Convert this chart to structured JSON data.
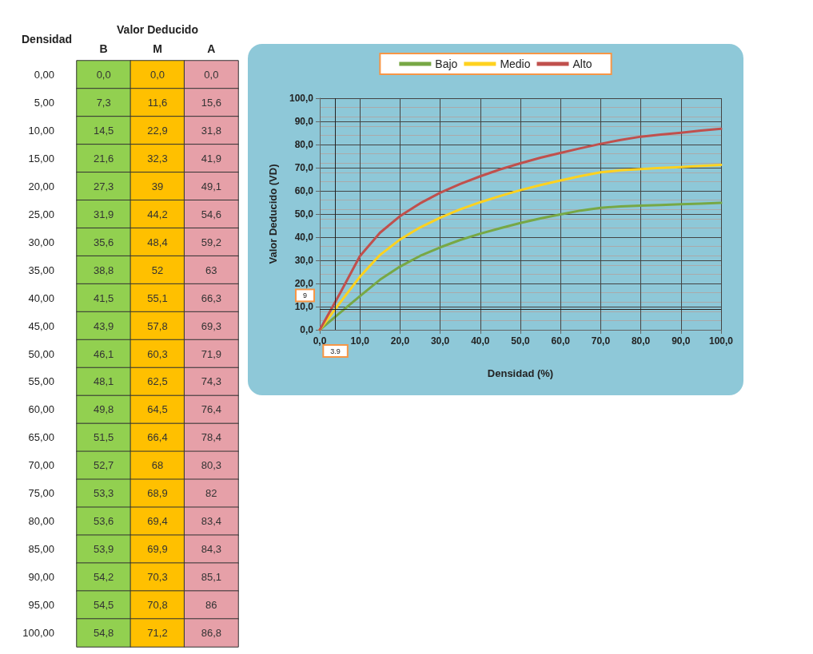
{
  "chart_data": [
    {
      "type": "heatmap",
      "xlabel": "Valor Deducido",
      "ylabel": "Densidad",
      "categories": [
        "B",
        "M",
        "A"
      ],
      "y_categories": [
        "0,00",
        "5,00",
        "10,00",
        "15,00",
        "20,00",
        "25,00",
        "30,00",
        "35,00",
        "40,00",
        "45,00",
        "50,00",
        "55,00",
        "60,00",
        "65,00",
        "70,00",
        "75,00",
        "80,00",
        "85,00",
        "90,00",
        "95,00",
        "100,00"
      ],
      "colors": [
        "#92d050",
        "#ffc000",
        "#e6a0a8"
      ],
      "cells": [
        [
          0.0,
          0.0,
          0.0
        ],
        [
          7.3,
          11.6,
          15.6
        ],
        [
          14.5,
          22.9,
          31.8
        ],
        [
          21.6,
          32.3,
          41.9
        ],
        [
          27.3,
          39,
          49.1
        ],
        [
          31.9,
          44.2,
          54.6
        ],
        [
          35.6,
          48.4,
          59.2
        ],
        [
          38.8,
          52,
          63
        ],
        [
          41.5,
          55.1,
          66.3
        ],
        [
          43.9,
          57.8,
          69.3
        ],
        [
          46.1,
          60.3,
          71.9
        ],
        [
          48.1,
          62.5,
          74.3
        ],
        [
          49.8,
          64.5,
          76.4
        ],
        [
          51.5,
          66.4,
          78.4
        ],
        [
          52.7,
          68,
          80.3
        ],
        [
          53.3,
          68.9,
          82
        ],
        [
          53.6,
          69.4,
          83.4
        ],
        [
          53.9,
          69.9,
          84.3
        ],
        [
          54.2,
          70.3,
          85.1
        ],
        [
          54.5,
          70.8,
          86
        ],
        [
          54.8,
          71.2,
          86.8
        ]
      ],
      "cell_labels": [
        [
          "0,0",
          "0,0",
          "0,0"
        ],
        [
          "7,3",
          "11,6",
          "15,6"
        ],
        [
          "14,5",
          "22,9",
          "31,8"
        ],
        [
          "21,6",
          "32,3",
          "41,9"
        ],
        [
          "27,3",
          "39",
          "49,1"
        ],
        [
          "31,9",
          "44,2",
          "54,6"
        ],
        [
          "35,6",
          "48,4",
          "59,2"
        ],
        [
          "38,8",
          "52",
          "63"
        ],
        [
          "41,5",
          "55,1",
          "66,3"
        ],
        [
          "43,9",
          "57,8",
          "69,3"
        ],
        [
          "46,1",
          "60,3",
          "71,9"
        ],
        [
          "48,1",
          "62,5",
          "74,3"
        ],
        [
          "49,8",
          "64,5",
          "76,4"
        ],
        [
          "51,5",
          "66,4",
          "78,4"
        ],
        [
          "52,7",
          "68",
          "80,3"
        ],
        [
          "53,3",
          "68,9",
          "82"
        ],
        [
          "53,6",
          "69,4",
          "83,4"
        ],
        [
          "53,9",
          "69,9",
          "84,3"
        ],
        [
          "54,2",
          "70,3",
          "85,1"
        ],
        [
          "54,5",
          "70,8",
          "86"
        ],
        [
          "54,8",
          "71,2",
          "86,8"
        ]
      ]
    },
    {
      "type": "line",
      "xlabel": "Densidad (%)",
      "ylabel": "Valor Deducido (VD)",
      "x": [
        0,
        5,
        10,
        15,
        20,
        25,
        30,
        35,
        40,
        45,
        50,
        55,
        60,
        65,
        70,
        75,
        80,
        85,
        90,
        95,
        100
      ],
      "series": [
        {
          "name": "Bajo",
          "color": "#77a845",
          "values": [
            0.0,
            7.3,
            14.5,
            21.6,
            27.3,
            31.9,
            35.6,
            38.8,
            41.5,
            43.9,
            46.1,
            48.1,
            49.8,
            51.5,
            52.7,
            53.3,
            53.6,
            53.9,
            54.2,
            54.5,
            54.8
          ]
        },
        {
          "name": "Medio",
          "color": "#ffd21f",
          "values": [
            0.0,
            11.6,
            22.9,
            32.3,
            39,
            44.2,
            48.4,
            52,
            55.1,
            57.8,
            60.3,
            62.5,
            64.5,
            66.4,
            68,
            68.9,
            69.4,
            69.9,
            70.3,
            70.8,
            71.2
          ]
        },
        {
          "name": "Alto",
          "color": "#c0504d",
          "values": [
            0.0,
            15.6,
            31.8,
            41.9,
            49.1,
            54.6,
            59.2,
            63,
            66.3,
            69.3,
            71.9,
            74.3,
            76.4,
            78.4,
            80.3,
            82,
            83.4,
            84.3,
            85.1,
            86,
            86.8
          ]
        }
      ],
      "xlim": [
        0,
        100
      ],
      "xticks": [
        {
          "value": 0,
          "label": "0,0"
        },
        {
          "value": 10,
          "label": "10,0"
        },
        {
          "value": 20,
          "label": "20,0"
        },
        {
          "value": 30,
          "label": "30,0"
        },
        {
          "value": 40,
          "label": "40,0"
        },
        {
          "value": 50,
          "label": "50,0"
        },
        {
          "value": 60,
          "label": "60,0"
        },
        {
          "value": 70,
          "label": "70,0"
        },
        {
          "value": 80,
          "label": "80,0"
        },
        {
          "value": 90,
          "label": "90,0"
        },
        {
          "value": 100,
          "label": "100,0"
        }
      ],
      "ylim": [
        0,
        100
      ],
      "yticks": [
        {
          "value": 0,
          "label": "0,0"
        },
        {
          "value": 10,
          "label": "10,0"
        },
        {
          "value": 20,
          "label": "20,0"
        },
        {
          "value": 30,
          "label": "30,0"
        },
        {
          "value": 40,
          "label": "40,0"
        },
        {
          "value": 50,
          "label": "50,0"
        },
        {
          "value": 60,
          "label": "60,0"
        },
        {
          "value": 70,
          "label": "70,0"
        },
        {
          "value": 80,
          "label": "80,0"
        },
        {
          "value": 90,
          "label": "90,0"
        },
        {
          "value": 100,
          "label": "100,0"
        }
      ],
      "grid": true,
      "legend": "top",
      "marker": "none",
      "ref_lines": [
        {
          "axis": "x",
          "value": 3.9,
          "label": "3.9"
        },
        {
          "axis": "y",
          "value": 9,
          "label": "9"
        }
      ]
    }
  ]
}
